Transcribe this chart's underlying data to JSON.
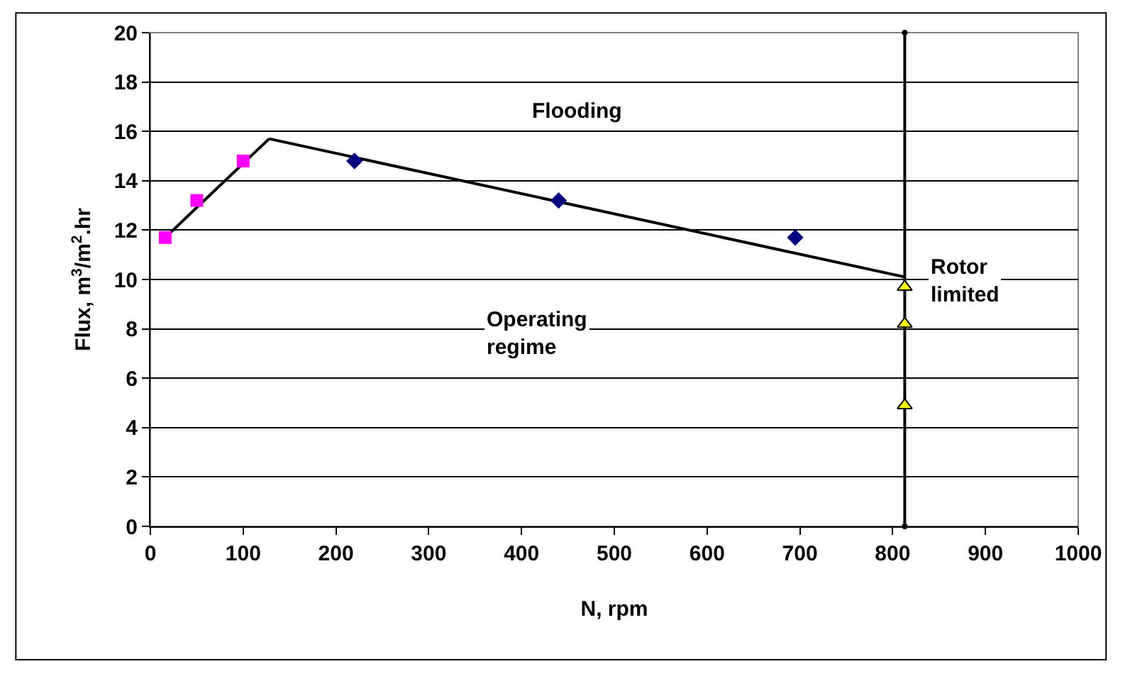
{
  "chart_data": {
    "type": "scatter",
    "xlabel": "N, rpm",
    "ylabel": "Flux, m$^{3}$/m$^{2}$.hr",
    "xlim": [
      0,
      1000
    ],
    "xticks": [
      0,
      100,
      200,
      300,
      400,
      500,
      600,
      700,
      800,
      900,
      1000
    ],
    "ylim": [
      0,
      20
    ],
    "yticks": [
      0,
      2,
      4,
      6,
      8,
      10,
      12,
      14,
      16,
      18,
      20
    ],
    "grid": "y",
    "series": [
      {
        "type": "line",
        "color": "#000000",
        "marker": "none",
        "x": [
          16,
          128
        ],
        "values": [
          11.7,
          15.7
        ]
      },
      {
        "type": "line",
        "color": "#000000",
        "marker": "none",
        "x": [
          128,
          813
        ],
        "values": [
          15.7,
          10.1
        ]
      },
      {
        "type": "line",
        "color": "#000000",
        "marker": "circle",
        "x": [
          813,
          813
        ],
        "values": [
          0,
          20
        ]
      },
      {
        "color": "#ff00ff",
        "marker": "square",
        "x": [
          16,
          50,
          100
        ],
        "values": [
          11.7,
          13.2,
          14.8
        ]
      },
      {
        "color": "#000080",
        "marker": "diamond",
        "x": [
          220,
          440,
          695
        ],
        "values": [
          14.8,
          13.2,
          11.7
        ]
      },
      {
        "color": "#ffff00",
        "marker": "triangle",
        "x": [
          813,
          813,
          813
        ],
        "values": [
          9.7,
          8.2,
          4.9
        ]
      }
    ],
    "annotations": [
      "Flooding",
      "Operating\nregime",
      "Rotor\nlimited"
    ]
  }
}
